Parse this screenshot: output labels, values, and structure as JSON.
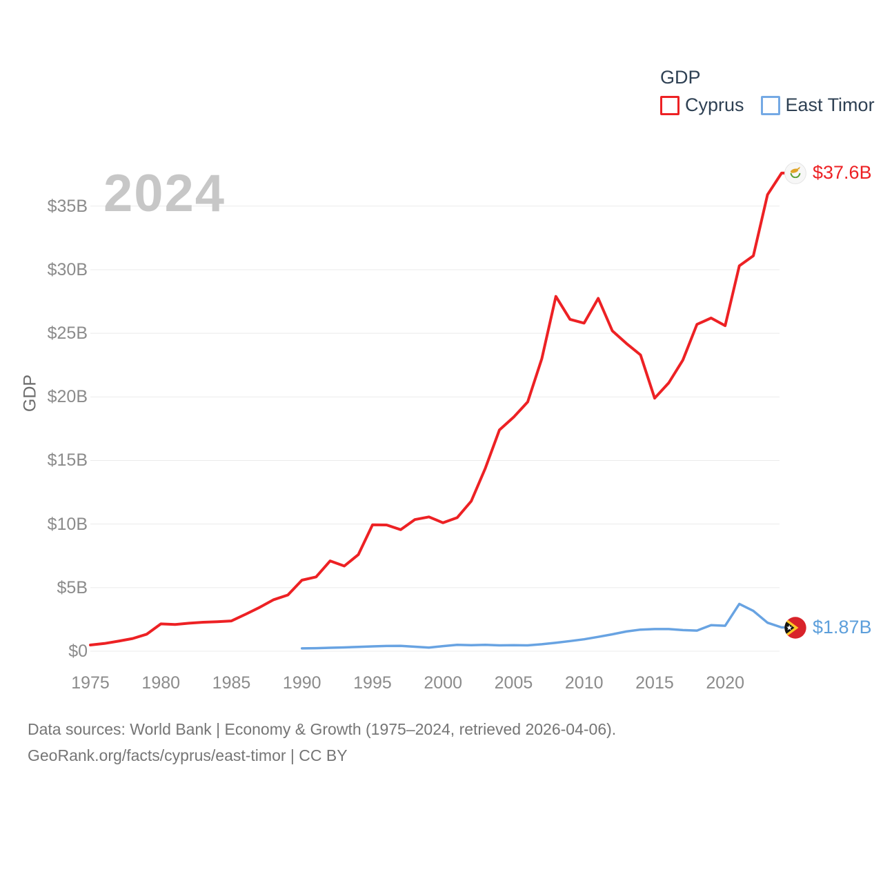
{
  "watermark": "2024",
  "legend": {
    "title": "GDP",
    "items": [
      {
        "label": "Cyprus",
        "color": "#ed2124"
      },
      {
        "label": "East Timor",
        "color": "#74a9e4"
      }
    ]
  },
  "y_axis_label": "GDP",
  "end_labels": {
    "cyprus": {
      "text": "$37.6B",
      "color": "#ed2124",
      "flag": "cyprus-flag"
    },
    "east_timor": {
      "text": "$1.87B",
      "color": "#5d9fdb",
      "flag": "east-timor-flag"
    }
  },
  "source": {
    "line1": "Data sources: World Bank | Economy & Growth (1975–2024, retrieved 2026-04-06).",
    "line2": "GeoRank.org/facts/cyprus/east-timor | CC BY"
  },
  "chart_data": {
    "type": "line",
    "title": "GDP",
    "xlabel": "",
    "ylabel": "GDP",
    "x_range": [
      1975,
      2024
    ],
    "ylim": [
      0,
      38.5
    ],
    "grid": true,
    "legend_position": "top-right",
    "watermark_year": "2024",
    "y_ticks": [
      {
        "label": "$35B",
        "value": 35
      },
      {
        "label": "$30B",
        "value": 30
      },
      {
        "label": "$25B",
        "value": 25
      },
      {
        "label": "$20B",
        "value": 20
      },
      {
        "label": "$15B",
        "value": 15
      },
      {
        "label": "$10B",
        "value": 10
      },
      {
        "label": "$5B",
        "value": 5
      },
      {
        "label": "$0",
        "value": 0
      }
    ],
    "x_ticks": [
      {
        "label": "1975",
        "value": 1975
      },
      {
        "label": "1980",
        "value": 1980
      },
      {
        "label": "1985",
        "value": 1985
      },
      {
        "label": "1990",
        "value": 1990
      },
      {
        "label": "1995",
        "value": 1995
      },
      {
        "label": "2000",
        "value": 2000
      },
      {
        "label": "2005",
        "value": 2005
      },
      {
        "label": "2010",
        "value": 2010
      },
      {
        "label": "2015",
        "value": 2015
      },
      {
        "label": "2020",
        "value": 2020
      }
    ],
    "series": [
      {
        "name": "Cyprus",
        "color": "#ed2124",
        "unit": "billion USD",
        "start_year": 1975,
        "end_year": 2024,
        "end_value_label": "$37.6B",
        "values": [
          0.49,
          0.61,
          0.79,
          1.0,
          1.34,
          2.15,
          2.1,
          2.2,
          2.28,
          2.32,
          2.38,
          2.9,
          3.45,
          4.05,
          4.42,
          5.59,
          5.84,
          7.1,
          6.7,
          7.6,
          9.94,
          9.93,
          9.56,
          10.35,
          10.56,
          10.1,
          10.5,
          11.8,
          14.4,
          17.4,
          18.4,
          19.6,
          23.0,
          27.9,
          26.1,
          25.8,
          27.75,
          25.2,
          24.2,
          23.3,
          19.9,
          21.1,
          22.9,
          25.7,
          26.2,
          25.6,
          30.3,
          31.1,
          35.9,
          37.6
        ]
      },
      {
        "name": "East Timor",
        "color": "#68a3e2",
        "unit": "billion USD",
        "start_year": 1990,
        "end_year": 2024,
        "end_value_label": "$1.87B",
        "values": [
          0.22,
          0.24,
          0.27,
          0.3,
          0.34,
          0.38,
          0.41,
          0.42,
          0.35,
          0.28,
          0.4,
          0.5,
          0.47,
          0.5,
          0.46,
          0.48,
          0.46,
          0.55,
          0.66,
          0.8,
          0.94,
          1.13,
          1.33,
          1.55,
          1.7,
          1.74,
          1.74,
          1.66,
          1.62,
          2.05,
          2.0,
          3.72,
          3.17,
          2.24,
          1.87
        ]
      }
    ]
  }
}
